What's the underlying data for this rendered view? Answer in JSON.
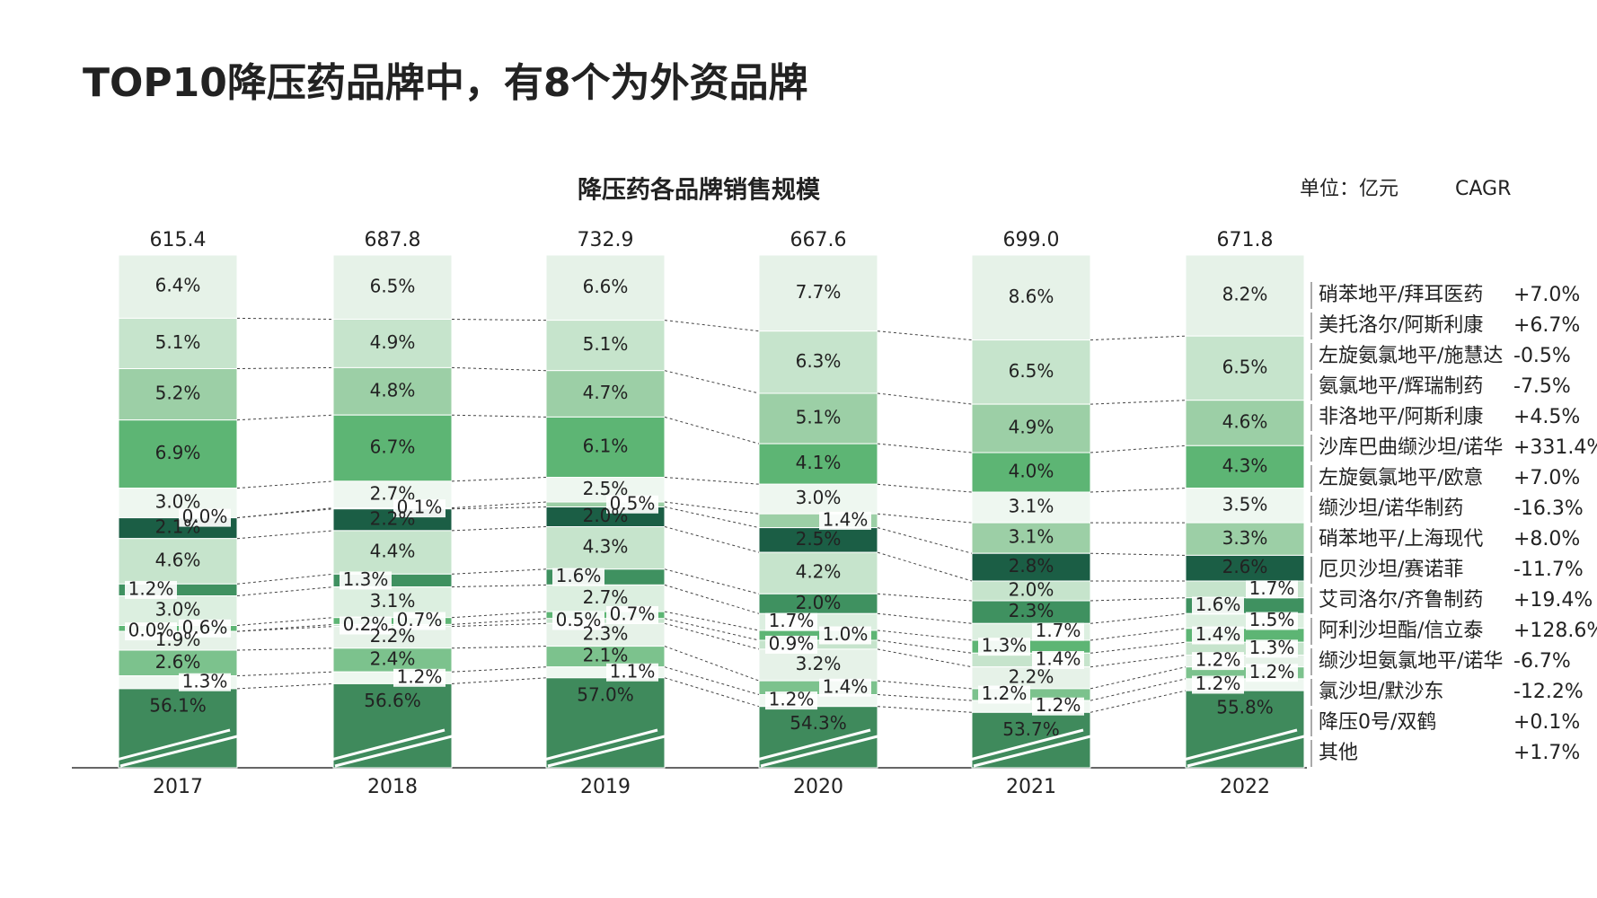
{
  "title": "TOP10降压药品牌中，有8个为外资品牌",
  "chart_data": {
    "type": "stacked_bar",
    "title": "降压药各品牌销售规模",
    "unit": "单位：亿元",
    "cagr_title": "CAGR",
    "categories": [
      "2017",
      "2018",
      "2019",
      "2020",
      "2021",
      "2022"
    ],
    "totals": {
      "values": [
        615.4,
        687.8,
        732.9,
        667.6,
        699.0,
        671.8
      ],
      "value_labels": [
        "615.4",
        "687.8",
        "732.9",
        "667.6",
        "699.0",
        "671.8"
      ]
    },
    "series": [
      {
        "name": "硝苯地平/拜耳医药",
        "color": "#e6f2e8",
        "values": [
          6.4,
          6.5,
          6.6,
          7.7,
          8.6,
          8.2
        ],
        "value_labels": [
          "6.4%",
          "6.5%",
          "6.6%",
          "7.7%",
          "8.6%",
          "8.2%"
        ],
        "cagr": 7.0,
        "cagr_label": "+7.0%"
      },
      {
        "name": "美托洛尔/阿斯利康",
        "color": "#c6e4cc",
        "values": [
          5.1,
          4.9,
          5.1,
          6.3,
          6.5,
          6.5
        ],
        "value_labels": [
          "5.1%",
          "4.9%",
          "5.1%",
          "6.3%",
          "6.5%",
          "6.5%"
        ],
        "cagr": 6.7,
        "cagr_label": "+6.7%"
      },
      {
        "name": "左旋氨氯地平/施慧达",
        "color": "#9ccfa6",
        "values": [
          5.2,
          4.8,
          4.7,
          5.1,
          4.9,
          4.6
        ],
        "value_labels": [
          "5.2%",
          "4.8%",
          "4.7%",
          "5.1%",
          "4.9%",
          "4.6%"
        ],
        "cagr": -0.5,
        "cagr_label": "-0.5%"
      },
      {
        "name": "氨氯地平/辉瑞制药",
        "color": "#5db574",
        "values": [
          6.9,
          6.7,
          6.1,
          4.1,
          4.0,
          4.3
        ],
        "value_labels": [
          "6.9%",
          "6.7%",
          "6.1%",
          "4.1%",
          "4.0%",
          "4.3%"
        ],
        "cagr": -7.5,
        "cagr_label": "-7.5%"
      },
      {
        "name": "非洛地平/阿斯利康",
        "color": "#eef7f0",
        "values": [
          3.0,
          2.7,
          2.5,
          3.0,
          3.1,
          3.5
        ],
        "value_labels": [
          "3.0%",
          "2.7%",
          "2.5%",
          "3.0%",
          "3.1%",
          "3.5%"
        ],
        "cagr": 4.5,
        "cagr_label": "+4.5%"
      },
      {
        "name": "沙库巴曲缬沙坦/诺华",
        "color": "#9ccfa6",
        "values": [
          0.0,
          0.1,
          0.5,
          1.4,
          3.1,
          3.3
        ],
        "value_labels": [
          "0.0%",
          "0.1%",
          "0.5%",
          "1.4%",
          "3.1%",
          "3.3%"
        ],
        "cagr": 331.4,
        "cagr_label": "+331.4%"
      },
      {
        "name": "左旋氨氯地平/欧意",
        "color": "#1b5e45",
        "values": [
          2.1,
          2.2,
          2.0,
          2.5,
          2.8,
          2.6
        ],
        "value_labels": [
          "2.1%",
          "2.2%",
          "2.0%",
          "2.5%",
          "2.8%",
          "2.6%"
        ],
        "cagr": 7.0,
        "cagr_label": "+7.0%"
      },
      {
        "name": "缬沙坦/诺华制药",
        "color": "#c6e4cc",
        "values": [
          4.6,
          4.4,
          4.3,
          4.2,
          2.0,
          1.7
        ],
        "value_labels": [
          "4.6%",
          "4.4%",
          "4.3%",
          "4.2%",
          "2.0%",
          "1.7%"
        ],
        "cagr": -16.3,
        "cagr_label": "-16.3%"
      },
      {
        "name": "硝苯地平/上海现代",
        "color": "#3f9160",
        "values": [
          1.2,
          1.3,
          1.6,
          2.0,
          2.3,
          1.6
        ],
        "value_labels": [
          "1.2%",
          "1.3%",
          "1.6%",
          "2.0%",
          "2.3%",
          "1.6%"
        ],
        "cagr": 8.0,
        "cagr_label": "+8.0%"
      },
      {
        "name": "厄贝沙坦/赛诺菲",
        "color": "#dcefe0",
        "values": [
          3.0,
          3.1,
          2.7,
          1.7,
          1.7,
          1.5
        ],
        "value_labels": [
          "3.0%",
          "3.1%",
          "2.7%",
          "1.7%",
          "1.7%",
          "1.5%"
        ],
        "cagr": -11.7,
        "cagr_label": "-11.7%"
      },
      {
        "name": "艾司洛尔/齐鲁制药",
        "color": "#5db574",
        "values": [
          0.6,
          0.7,
          0.7,
          1.0,
          1.3,
          1.4
        ],
        "value_labels": [
          "0.6%",
          "0.7%",
          "0.7%",
          "1.0%",
          "1.3%",
          "1.4%"
        ],
        "cagr": 19.4,
        "cagr_label": "+19.4%"
      },
      {
        "name": "阿利沙坦酯/信立泰",
        "color": "#c6e4cc",
        "values": [
          0.0,
          0.2,
          0.5,
          0.9,
          1.4,
          1.3
        ],
        "value_labels": [
          "0.0%",
          "0.2%",
          "0.5%",
          "0.9%",
          "1.4%",
          "1.3%"
        ],
        "cagr": 128.6,
        "cagr_label": "+128.6%"
      },
      {
        "name": "缬沙坦氨氯地平/诺华",
        "color": "#e6f2e8",
        "values": [
          1.9,
          2.2,
          2.3,
          3.2,
          2.2,
          1.2
        ],
        "value_labels": [
          "1.9%",
          "2.2%",
          "2.3%",
          "3.2%",
          "2.2%",
          "1.2%"
        ],
        "cagr": -6.7,
        "cagr_label": "-6.7%"
      },
      {
        "name": "氯沙坦/默沙东",
        "color": "#7cc28d",
        "values": [
          2.6,
          2.4,
          2.1,
          1.4,
          1.2,
          1.2
        ],
        "value_labels": [
          "2.6%",
          "2.4%",
          "2.1%",
          "1.4%",
          "1.2%",
          "1.2%"
        ],
        "cagr": -12.2,
        "cagr_label": "-12.2%"
      },
      {
        "name": "降压0号/双鹤",
        "color": "#eef7f0",
        "values": [
          1.3,
          1.2,
          1.1,
          1.2,
          1.2,
          1.2
        ],
        "value_labels": [
          "1.3%",
          "1.2%",
          "1.1%",
          "1.2%",
          "1.2%",
          "1.2%"
        ],
        "cagr": 0.1,
        "cagr_label": "+0.1%"
      },
      {
        "name": "其他",
        "color": "#3f8a5c",
        "values": [
          56.1,
          56.6,
          57.0,
          54.3,
          53.7,
          55.8
        ],
        "value_labels": [
          "56.1%",
          "56.6%",
          "57.0%",
          "54.3%",
          "53.7%",
          "55.8%"
        ],
        "cagr": 1.7,
        "cagr_label": "+1.7%"
      }
    ]
  }
}
